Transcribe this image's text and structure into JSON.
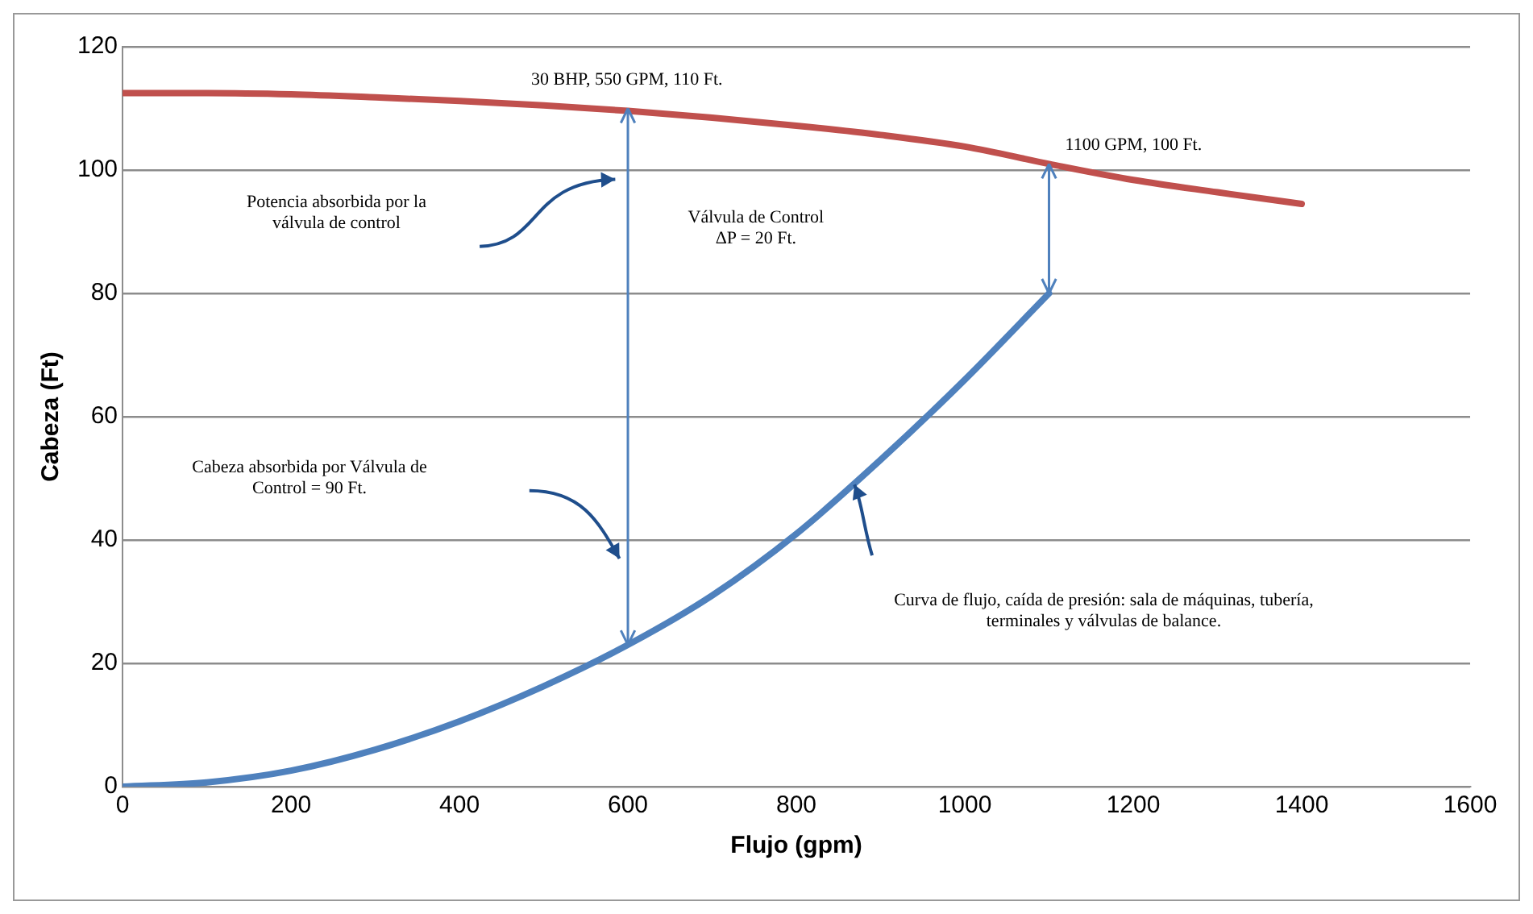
{
  "chart_data": {
    "type": "line",
    "xlabel": "Flujo (gpm)",
    "ylabel": "Cabeza (Ft)",
    "xlim": [
      0,
      1600
    ],
    "xticks": [
      0,
      200,
      400,
      600,
      800,
      1000,
      1200,
      1400,
      1600
    ],
    "ylim": [
      0,
      120
    ],
    "yticks": [
      0,
      20,
      40,
      60,
      80,
      100,
      120
    ],
    "grid": "y",
    "legend": false,
    "marker": "none",
    "line_style": "solid",
    "series": [
      {
        "color": "#c0504d",
        "x": [
          0,
          100,
          200,
          300,
          400,
          500,
          600,
          700,
          800,
          900,
          1000,
          1100,
          1200,
          1300,
          1400
        ],
        "values": [
          112.5,
          112.5,
          112.3,
          111.8,
          111.2,
          110.5,
          109.6,
          108.5,
          107.2,
          105.7,
          103.8,
          101,
          98.4,
          96.4,
          94.5
        ]
      },
      {
        "color": "#4f81bd",
        "x": [
          0,
          100,
          200,
          300,
          400,
          500,
          600,
          700,
          800,
          900,
          1000,
          1100
        ],
        "values": [
          0,
          0.7,
          2.6,
          6,
          10.6,
          16.3,
          23,
          31,
          41,
          53,
          66,
          80
        ]
      }
    ],
    "annotations": [
      {
        "text": "30 BHP, 550 GPM, 110 Ft.",
        "x": 600,
        "y": 110
      },
      {
        "text": "1100 GPM, 100 Ft.",
        "x": 1100,
        "y": 101
      },
      "Potencia absorbida por la válvula de control",
      "Válvula de Control ΔP = 20 Ft.",
      "Cabeza absorbida por Válvula de Control = 90 Ft.",
      "Curva de flujo, caída de presión: sala de máquinas, tubería, terminales y válvulas de balance."
    ]
  }
}
